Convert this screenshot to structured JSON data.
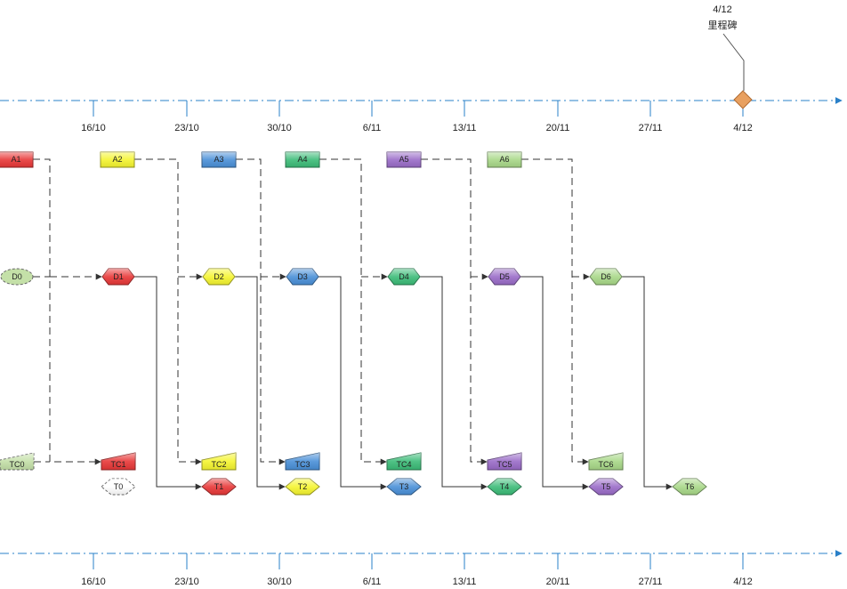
{
  "timeline": {
    "dates": [
      "16/10",
      "23/10",
      "30/10",
      "6/11",
      "13/11",
      "20/11",
      "27/11",
      "4/12"
    ]
  },
  "milestone": {
    "date": "4/12",
    "label": "里程碑",
    "color": "#e8a060",
    "icon": "diamond-icon"
  },
  "lanes": [
    {
      "a": "A1",
      "d": "D1",
      "tc": "TC1",
      "t": "T1",
      "color": "#e83838"
    },
    {
      "a": "A2",
      "d": "D2",
      "tc": "TC2",
      "t": "T2",
      "color": "#f5f530"
    },
    {
      "a": "A3",
      "d": "D3",
      "tc": "TC3",
      "t": "T3",
      "color": "#4a90d8"
    },
    {
      "a": "A4",
      "d": "D4",
      "tc": "TC4",
      "t": "T4",
      "color": "#3cbc78"
    },
    {
      "a": "A5",
      "d": "D5",
      "tc": "TC5",
      "t": "T5",
      "color": "#9a6cc8"
    },
    {
      "a": "A6",
      "d": "D6",
      "tc": "TC6",
      "t": "T6",
      "color": "#a8d888"
    }
  ],
  "initial": {
    "d": "D0",
    "tc": "TC0",
    "t": "T0",
    "color": "#c4e0a8"
  },
  "colors": {
    "axis": "#2a80c8",
    "connector": "#333333"
  }
}
